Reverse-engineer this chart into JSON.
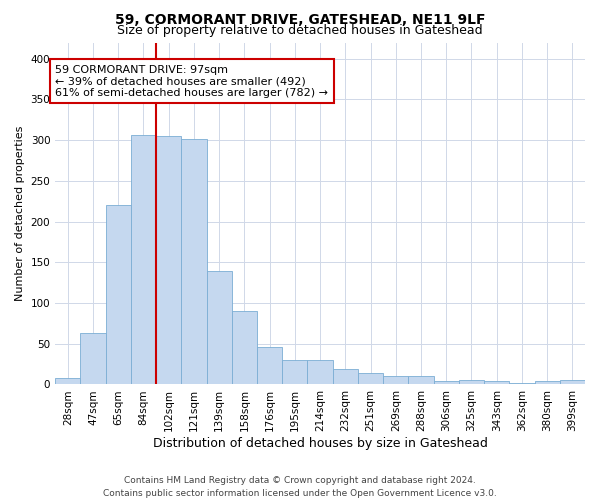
{
  "title1": "59, CORMORANT DRIVE, GATESHEAD, NE11 9LF",
  "title2": "Size of property relative to detached houses in Gateshead",
  "xlabel": "Distribution of detached houses by size in Gateshead",
  "ylabel": "Number of detached properties",
  "categories": [
    "28sqm",
    "47sqm",
    "65sqm",
    "84sqm",
    "102sqm",
    "121sqm",
    "139sqm",
    "158sqm",
    "176sqm",
    "195sqm",
    "214sqm",
    "232sqm",
    "251sqm",
    "269sqm",
    "288sqm",
    "306sqm",
    "325sqm",
    "343sqm",
    "362sqm",
    "380sqm",
    "399sqm"
  ],
  "values": [
    8,
    63,
    221,
    307,
    305,
    302,
    139,
    90,
    46,
    30,
    30,
    19,
    14,
    11,
    10,
    4,
    5,
    4,
    2,
    4,
    5
  ],
  "bar_color": "#c5d8ef",
  "bar_edge_color": "#7badd4",
  "vline_index": 4,
  "vline_color": "#cc0000",
  "annotation_line1": "59 CORMORANT DRIVE: 97sqm",
  "annotation_line2": "← 39% of detached houses are smaller (492)",
  "annotation_line3": "61% of semi-detached houses are larger (782) →",
  "annotation_box_color": "#ffffff",
  "annotation_box_edge": "#cc0000",
  "ylim": [
    0,
    420
  ],
  "yticks": [
    0,
    50,
    100,
    150,
    200,
    250,
    300,
    350,
    400
  ],
  "footer": "Contains HM Land Registry data © Crown copyright and database right 2024.\nContains public sector information licensed under the Open Government Licence v3.0.",
  "title1_fontsize": 10,
  "title2_fontsize": 9,
  "xlabel_fontsize": 9,
  "ylabel_fontsize": 8,
  "tick_fontsize": 7.5,
  "annotation_fontsize": 8,
  "footer_fontsize": 6.5,
  "background_color": "#ffffff",
  "grid_color": "#d0d8e8"
}
